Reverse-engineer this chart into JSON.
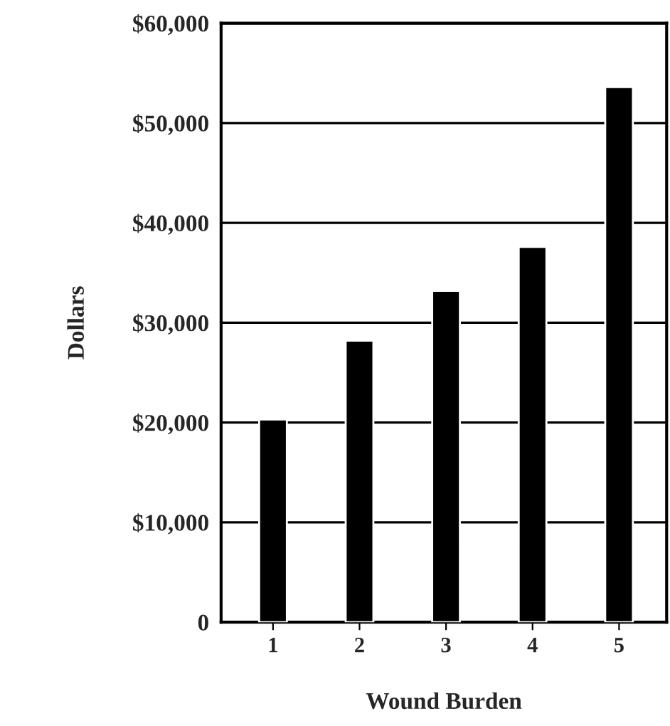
{
  "chart_data": {
    "type": "bar",
    "xlabel": "Wound Burden",
    "ylabel": "Dollars",
    "categories": [
      "1",
      "2",
      "3",
      "4",
      "5"
    ],
    "values": [
      20300,
      28200,
      33200,
      37600,
      53600
    ],
    "color": "#000000",
    "ylim": [
      0,
      60000
    ],
    "yticks": [
      {
        "value": 0,
        "label": "0"
      },
      {
        "value": 10000,
        "label": "$10,000"
      },
      {
        "value": 20000,
        "label": "$20,000"
      },
      {
        "value": 30000,
        "label": "$30,000"
      },
      {
        "value": 40000,
        "label": "$40,000"
      },
      {
        "value": 50000,
        "label": "$50,000"
      },
      {
        "value": 60000,
        "label": "$60,000"
      }
    ],
    "grid": "y"
  }
}
